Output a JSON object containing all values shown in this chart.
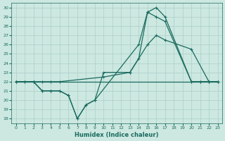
{
  "xlabel": "Humidex (Indice chaleur)",
  "bg_color": "#cce8e0",
  "line_color": "#1a6b60",
  "grid_color": "#aacfc8",
  "xlim": [
    -0.5,
    23.5
  ],
  "ylim": [
    17.5,
    30.5
  ],
  "xticks": [
    0,
    1,
    2,
    3,
    4,
    5,
    6,
    7,
    8,
    9,
    10,
    11,
    12,
    13,
    14,
    15,
    16,
    17,
    18,
    19,
    20,
    21,
    22,
    23
  ],
  "yticks": [
    18,
    19,
    20,
    21,
    22,
    23,
    24,
    25,
    26,
    27,
    28,
    29,
    30
  ],
  "lines": [
    {
      "x": [
        0,
        23
      ],
      "y": [
        22,
        22
      ]
    },
    {
      "x": [
        0,
        1,
        2,
        3,
        4,
        5,
        10,
        13,
        15,
        16,
        17,
        20,
        22,
        23
      ],
      "y": [
        22,
        22,
        22,
        22,
        22,
        22,
        22.5,
        23,
        26,
        27,
        26.5,
        25.5,
        22,
        22
      ]
    },
    {
      "x": [
        0,
        1,
        2,
        3,
        4,
        5,
        6,
        7,
        8,
        9,
        10,
        13,
        14,
        15,
        16,
        17,
        20,
        21,
        22,
        23
      ],
      "y": [
        22,
        22,
        22,
        21,
        21,
        21,
        20.5,
        18,
        19.5,
        20,
        23,
        23,
        24.5,
        29.5,
        29,
        28.5,
        22,
        22,
        22,
        22
      ]
    },
    {
      "x": [
        0,
        2,
        3,
        4,
        5,
        6,
        7,
        8,
        9,
        14,
        15,
        16,
        17,
        20,
        21,
        22,
        23
      ],
      "y": [
        22,
        22,
        21,
        21,
        21,
        20.5,
        18,
        19.5,
        20,
        26,
        29.5,
        30,
        29,
        22,
        22,
        22,
        22
      ]
    }
  ]
}
